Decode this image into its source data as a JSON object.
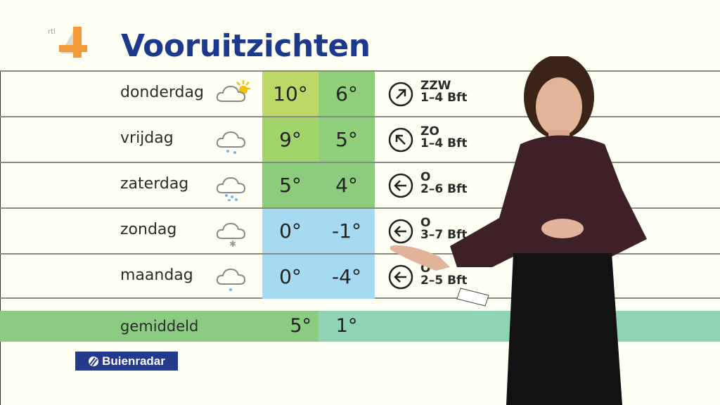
{
  "channel_logo": "rtl 4",
  "title": "Vooruitzichten",
  "colors": {
    "title": "#1c3a8c",
    "warm_max": "#b8d96a",
    "green": "#8dcc7c",
    "cold": "#a6daf0",
    "avg_min": "#8fd4b4"
  },
  "forecast": [
    {
      "day": "donderdag",
      "icon": "partly-cloudy-sun-icon",
      "max": "10°",
      "min": "6°",
      "wind_dir": "ZZW",
      "wind_force": "1–4 Bft",
      "arrow": "arrow-up-right-icon",
      "max_color": "#bcd967",
      "min_color": "#8fcf7a"
    },
    {
      "day": "vrijdag",
      "icon": "cloud-rain-icon",
      "max": "9°",
      "min": "5°",
      "wind_dir": "ZO",
      "wind_force": "1–4 Bft",
      "arrow": "arrow-up-left-icon",
      "max_color": "#a2d46c",
      "min_color": "#8fcf7a"
    },
    {
      "day": "zaterdag",
      "icon": "cloud-rain-heavy-icon",
      "max": "5°",
      "min": "4°",
      "wind_dir": "O",
      "wind_force": "2–6 Bft",
      "arrow": "arrow-left-icon",
      "max_color": "#8dcc7c",
      "min_color": "#8dcc7c"
    },
    {
      "day": "zondag",
      "icon": "cloud-snow-icon",
      "max": "0°",
      "min": "-1°",
      "wind_dir": "O",
      "wind_force": "3–7 Bft",
      "arrow": "arrow-left-icon",
      "max_color": "#a6daf0",
      "min_color": "#a6daf0"
    },
    {
      "day": "maandag",
      "icon": "cloud-drizzle-icon",
      "max": "0°",
      "min": "-4°",
      "wind_dir": "O",
      "wind_force": "2–5 Bft",
      "arrow": "arrow-left-icon",
      "max_color": "#a6daf0",
      "min_color": "#a6daf0"
    }
  ],
  "average": {
    "label": "gemiddeld",
    "max": "5°",
    "min": "1°"
  },
  "sponsor": "Buienradar"
}
